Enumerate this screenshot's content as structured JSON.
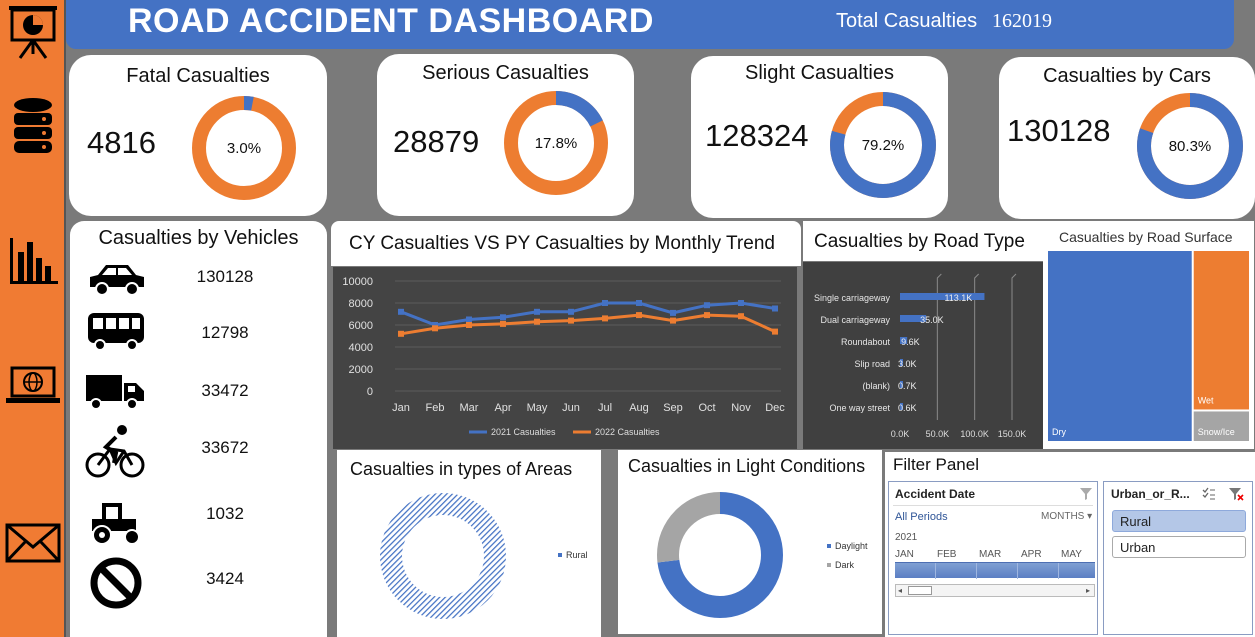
{
  "header": {
    "title": "ROAD ACCIDENT DASHBOARD",
    "total_label": "Total Casualties",
    "total_value": "162019"
  },
  "sidebar": {
    "icons": [
      "presentation-icon",
      "database-icon",
      "bar-chart-icon",
      "laptop-globe-icon",
      "mail-icon"
    ]
  },
  "kpis": [
    {
      "title": "Fatal Casualties",
      "value": "4816",
      "pct_label": "3.0%",
      "fraction": 0.03
    },
    {
      "title": "Serious Casualties",
      "value": "28879",
      "pct_label": "17.8%",
      "fraction": 0.178
    },
    {
      "title": "Slight Casualties",
      "value": "128324",
      "pct_label": "79.2%",
      "fraction": 0.792
    },
    {
      "title": "Casualties by Cars",
      "value": "130128",
      "pct_label": "80.3%",
      "fraction": 0.803
    }
  ],
  "vehicles": {
    "title": "Casualties by Vehicles",
    "items": [
      {
        "icon": "car-icon",
        "value": "130128"
      },
      {
        "icon": "bus-icon",
        "value": "12798"
      },
      {
        "icon": "truck-icon",
        "value": "33472"
      },
      {
        "icon": "bicycle-icon",
        "value": "33672"
      },
      {
        "icon": "tractor-icon",
        "value": "1032"
      },
      {
        "icon": "no-entry-icon",
        "value": "3424"
      }
    ]
  },
  "colors": {
    "blue": "#4472c4",
    "orange": "#ed7d31",
    "gray": "#a5a5a5"
  },
  "trend": {
    "title": "CY Casualties VS PY Casualties by Monthly Trend"
  },
  "road_type": {
    "title": "Casualties by Road Type"
  },
  "road_surface": {
    "title": "Casualties by Road Surface",
    "labels": [
      "Dry",
      "Wet",
      "Snow/Ice"
    ]
  },
  "areas": {
    "title": "Casualties in types of Areas"
  },
  "light": {
    "title": "Casualties in Light Conditions"
  },
  "filter": {
    "title": "Filter Panel",
    "date_slicer": {
      "title": "Accident  Date",
      "periods": "All Periods",
      "level": "MONTHS",
      "year": "2021",
      "months": [
        "JAN",
        "FEB",
        "MAR",
        "APR",
        "MAY"
      ]
    },
    "area_slicer": {
      "title": "Urban_or_R...",
      "items": [
        "Rural",
        "Urban"
      ]
    }
  },
  "chart_data": [
    {
      "type": "line",
      "title": "CY Casualties VS PY Casualties by Monthly Trend",
      "categories": [
        "Jan",
        "Feb",
        "Mar",
        "Apr",
        "May",
        "Jun",
        "Jul",
        "Aug",
        "Sep",
        "Oct",
        "Nov",
        "Dec"
      ],
      "series": [
        {
          "name": "2021 Casualties",
          "color": "#4472c4",
          "values": [
            7200,
            6000,
            6500,
            6700,
            7200,
            7200,
            8000,
            8000,
            7100,
            7800,
            8000,
            7500
          ]
        },
        {
          "name": "2022 Casualties",
          "color": "#ed7d31",
          "values": [
            5200,
            5700,
            6000,
            6100,
            6300,
            6400,
            6600,
            6900,
            6400,
            6900,
            6800,
            5400
          ]
        }
      ],
      "ylim": [
        0,
        10000
      ],
      "yticks": [
        "0",
        "2000",
        "4000",
        "6000",
        "8000",
        "10000"
      ],
      "grid": true,
      "legend": "bottom"
    },
    {
      "type": "bar",
      "orientation": "horizontal",
      "title": "Casualties by Road Type",
      "categories": [
        "Single carriageway",
        "Dual carriageway",
        "Roundabout",
        "Slip road",
        "(blank)",
        "One way street"
      ],
      "values": [
        113100,
        35000,
        9600,
        3000,
        700,
        600
      ],
      "data_labels": [
        "113.1K",
        "35.0K",
        "9.6K",
        "3.0K",
        "0.7K",
        "0.6K"
      ],
      "xticks": [
        "0.0K",
        "50.0K",
        "100.0K",
        "150.0K"
      ],
      "xlim": [
        0,
        150000
      ]
    },
    {
      "type": "treemap",
      "title": "Casualties by Road Surface",
      "categories": [
        "Dry",
        "Wet",
        "Snow/Ice"
      ],
      "values": [
        0.72,
        0.235,
        0.045
      ]
    },
    {
      "type": "pie",
      "subtype": "donut",
      "title": "Casualties in types of Areas",
      "categories": [
        "Rural"
      ],
      "values": [
        1.0
      ],
      "legend": "right"
    },
    {
      "type": "pie",
      "subtype": "donut",
      "title": "Casualties in Light Conditions",
      "categories": [
        "Daylight",
        "Dark"
      ],
      "values": [
        0.73,
        0.27
      ],
      "legend": "right"
    }
  ]
}
